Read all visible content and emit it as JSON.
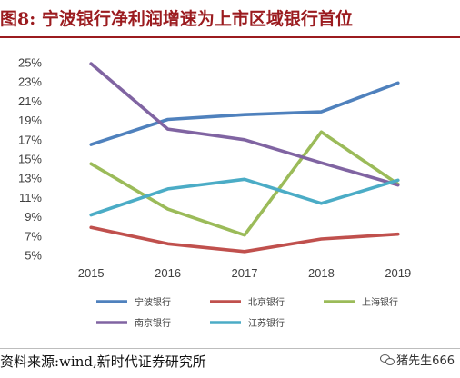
{
  "figure": {
    "title": "图8:    宁波银行净利润增速为上市区域银行首位",
    "source": "资料来源:wind,新时代证券研究所",
    "watermark": "猪先生666",
    "watermark_icon": "wechat-icon"
  },
  "chart_data": {
    "type": "line",
    "x": [
      "2015",
      "2016",
      "2017",
      "2018",
      "2019"
    ],
    "ylim": [
      0.05,
      0.25
    ],
    "yticks": [
      "5%",
      "7%",
      "9%",
      "11%",
      "13%",
      "15%",
      "17%",
      "19%",
      "21%",
      "23%",
      "25%"
    ],
    "grid": false,
    "legend_position": "bottom",
    "series": [
      {
        "name": "宁波银行",
        "color": "#4f81bd",
        "values": [
          0.165,
          0.191,
          0.196,
          0.199,
          0.229
        ]
      },
      {
        "name": "北京银行",
        "color": "#c0504d",
        "values": [
          0.079,
          0.062,
          0.054,
          0.067,
          0.072
        ]
      },
      {
        "name": "上海银行",
        "color": "#9bbb59",
        "values": [
          0.145,
          0.098,
          0.071,
          0.178,
          0.124
        ]
      },
      {
        "name": "南京银行",
        "color": "#8064a2",
        "values": [
          0.249,
          0.181,
          0.17,
          0.146,
          0.123
        ]
      },
      {
        "name": "江苏银行",
        "color": "#4bacc6",
        "values": [
          0.092,
          0.119,
          0.129,
          0.104,
          0.128
        ]
      }
    ]
  }
}
